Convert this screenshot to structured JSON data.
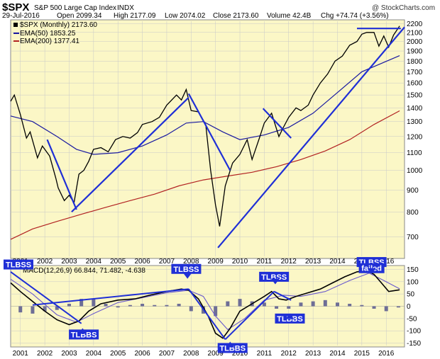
{
  "header": {
    "symbol": "$SPX",
    "name": "S&P 500 Large Cap Index",
    "exchange": "INDX",
    "watermark": "@ StockCharts.com",
    "date": "29-Jul-2016",
    "open": "Open 2099.34",
    "high": "High 2177.09",
    "low": "Low 2074.02",
    "close": "Close 2173.60",
    "volume": "Volume 42.4B",
    "chg": "Chg +74.74 (+3.56%)"
  },
  "legend": {
    "price": "$SPX (Monthly) 2173.60",
    "ema50": "EMA(50) 1853.25",
    "ema200": "EMA(200) 1377.41",
    "macd": "MACD(12,26,9) 66.844, 71.482, -4.638"
  },
  "colors": {
    "background": "#fbf7c6",
    "price": "#000000",
    "ema50": "#1a1aa0",
    "ema200": "#b22222",
    "trendline": "#1f2fd6",
    "histogram": "#6e6e96",
    "annotation_box": "#1f2fd6",
    "grid": "#c8c8c8"
  },
  "chart_data": [
    {
      "type": "line",
      "title": "$SPX S&P 500 Large Cap Index INDX (Monthly)",
      "y_scale": "log",
      "ylim": [
        630,
        2230
      ],
      "xlim": [
        2000.6,
        2016.75
      ],
      "x_ticks": [
        "2001",
        "2002",
        "2003",
        "2004",
        "2005",
        "2006",
        "2007",
        "2008",
        "2009",
        "2010",
        "2011",
        "2012",
        "2013",
        "2014",
        "2015",
        "2016"
      ],
      "y_ticks": [
        700,
        800,
        900,
        1000,
        1100,
        1200,
        1300,
        1400,
        1500,
        1600,
        1700,
        1800,
        1900,
        2000,
        2100,
        2200
      ],
      "series": [
        {
          "name": "$SPX (Monthly) 2173.60",
          "x": [
            2000.6,
            2000.75,
            2001.0,
            2001.25,
            2001.4,
            2001.7,
            2001.9,
            2002.2,
            2002.45,
            2002.55,
            2002.8,
            2003.0,
            2003.2,
            2003.4,
            2003.6,
            2003.8,
            2004.0,
            2004.3,
            2004.6,
            2004.9,
            2005.2,
            2005.5,
            2005.8,
            2006.0,
            2006.4,
            2006.7,
            2007.0,
            2007.4,
            2007.6,
            2007.8,
            2008.0,
            2008.3,
            2008.6,
            2008.8,
            2009.0,
            2009.17,
            2009.4,
            2009.7,
            2010.0,
            2010.3,
            2010.5,
            2010.8,
            2011.0,
            2011.3,
            2011.6,
            2011.75,
            2012.0,
            2012.3,
            2012.5,
            2012.8,
            2013.0,
            2013.3,
            2013.6,
            2013.9,
            2014.2,
            2014.5,
            2014.8,
            2015.0,
            2015.2,
            2015.5,
            2015.7,
            2015.9,
            2016.1,
            2016.3,
            2016.55
          ],
          "y": [
            1450,
            1500,
            1350,
            1190,
            1230,
            1070,
            1140,
            1080,
            960,
            910,
            850,
            875,
            840,
            980,
            1000,
            1050,
            1120,
            1130,
            1105,
            1180,
            1200,
            1190,
            1225,
            1280,
            1300,
            1330,
            1420,
            1500,
            1460,
            1545,
            1380,
            1370,
            1280,
            1000,
            830,
            740,
            920,
            1040,
            1090,
            1180,
            1060,
            1190,
            1290,
            1360,
            1200,
            1250,
            1330,
            1400,
            1380,
            1420,
            1500,
            1600,
            1680,
            1800,
            1850,
            1960,
            2000,
            2080,
            2100,
            2100,
            1950,
            2060,
            1940,
            2070,
            2173.6
          ]
        },
        {
          "name": "EMA(50) 1853.25",
          "x": [
            2000.6,
            2001.5,
            2002.5,
            2003.3,
            2004.0,
            2005.0,
            2006.0,
            2007.0,
            2007.8,
            2008.5,
            2009.3,
            2010.0,
            2011.0,
            2012.0,
            2013.0,
            2014.0,
            2015.0,
            2016.55
          ],
          "y": [
            1340,
            1300,
            1200,
            1120,
            1090,
            1100,
            1140,
            1210,
            1290,
            1300,
            1230,
            1180,
            1210,
            1260,
            1360,
            1520,
            1700,
            1853.25
          ]
        },
        {
          "name": "EMA(200) 1377.41",
          "x": [
            2000.6,
            2001.5,
            2002.5,
            2003.5,
            2004.5,
            2005.5,
            2006.5,
            2007.5,
            2008.5,
            2009.5,
            2010.5,
            2011.5,
            2012.5,
            2013.5,
            2014.5,
            2015.5,
            2016.55
          ],
          "y": [
            690,
            730,
            760,
            790,
            820,
            850,
            880,
            920,
            950,
            970,
            990,
            1020,
            1060,
            1110,
            1180,
            1280,
            1377.41
          ]
        }
      ],
      "trendlines": [
        {
          "x": [
            2002.1,
            2003.3
          ],
          "y": [
            1180,
            810
          ]
        },
        {
          "x": [
            2003.1,
            2007.9
          ],
          "y": [
            800,
            1480
          ]
        },
        {
          "x": [
            2007.9,
            2009.6
          ],
          "y": [
            1510,
            1000
          ]
        },
        {
          "x": [
            2009.1,
            2016.75
          ],
          "y": [
            660,
            2160
          ]
        },
        {
          "x": [
            2010.95,
            2012.1
          ],
          "y": [
            1395,
            1190
          ]
        },
        {
          "x": [
            2014.8,
            2016.6
          ],
          "y": [
            2145,
            2145
          ]
        }
      ]
    },
    {
      "type": "line",
      "title": "MACD(12,26,9) 66.844, 71.482, -4.638",
      "ylim": [
        -160,
        160
      ],
      "xlim": [
        2000.6,
        2016.75
      ],
      "y_ticks": [
        150,
        100,
        50,
        0,
        -50,
        -100,
        -150
      ],
      "series": [
        {
          "name": "MACD",
          "x": [
            2000.6,
            2001.0,
            2001.5,
            2002.0,
            2002.5,
            2003.0,
            2003.4,
            2003.8,
            2004.3,
            2005.0,
            2005.7,
            2006.3,
            2007.0,
            2007.6,
            2007.9,
            2008.3,
            2008.7,
            2009.0,
            2009.3,
            2009.6,
            2010.0,
            2010.5,
            2011.0,
            2011.3,
            2011.6,
            2011.9,
            2012.3,
            2012.8,
            2013.3,
            2013.8,
            2014.3,
            2014.8,
            2015.2,
            2015.5,
            2015.8,
            2016.1,
            2016.55
          ],
          "y": [
            95,
            60,
            20,
            -20,
            -55,
            -75,
            -60,
            -20,
            10,
            25,
            30,
            45,
            60,
            70,
            65,
            30,
            -40,
            -110,
            -130,
            -90,
            -20,
            10,
            40,
            60,
            30,
            25,
            40,
            55,
            70,
            95,
            120,
            140,
            145,
            130,
            95,
            60,
            67
          ]
        },
        {
          "name": "Signal",
          "x": [
            2000.6,
            2001.5,
            2002.5,
            2003.3,
            2004.0,
            2005.0,
            2006.0,
            2007.0,
            2007.9,
            2008.5,
            2009.0,
            2009.5,
            2010.2,
            2011.0,
            2011.8,
            2012.5,
            2013.5,
            2014.5,
            2015.3,
            2015.9,
            2016.55
          ],
          "y": [
            110,
            50,
            -35,
            -65,
            -30,
            15,
            35,
            55,
            65,
            40,
            -40,
            -95,
            -50,
            25,
            45,
            40,
            60,
            105,
            135,
            105,
            71
          ]
        }
      ],
      "histogram": {
        "x": [
          2001.0,
          2001.5,
          2002.0,
          2002.5,
          2003.0,
          2003.5,
          2004.0,
          2004.5,
          2005.0,
          2005.5,
          2006.0,
          2006.5,
          2007.0,
          2007.5,
          2008.0,
          2008.5,
          2009.0,
          2009.5,
          2010.0,
          2010.5,
          2011.0,
          2011.5,
          2012.0,
          2012.5,
          2013.0,
          2013.5,
          2014.0,
          2014.5,
          2015.0,
          2015.5,
          2016.0,
          2016.5
        ],
        "y": [
          -25,
          -30,
          -20,
          -15,
          10,
          30,
          30,
          10,
          -5,
          5,
          10,
          5,
          5,
          10,
          -20,
          -30,
          -40,
          20,
          30,
          20,
          15,
          -10,
          -10,
          15,
          20,
          25,
          15,
          10,
          5,
          -10,
          -20,
          -5
        ]
      },
      "trendlines": [
        {
          "x": [
            2000.6,
            2003.5
          ],
          "y": [
            140,
            -70
          ]
        },
        {
          "x": [
            2001.5,
            2007.9
          ],
          "y": [
            5,
            70
          ]
        },
        {
          "x": [
            2007.9,
            2009.4
          ],
          "y": [
            70,
            -135
          ]
        },
        {
          "x": [
            2009.4,
            2011.4
          ],
          "y": [
            -135,
            60
          ]
        },
        {
          "x": [
            2011.4,
            2012.1
          ],
          "y": [
            60,
            25
          ]
        }
      ]
    }
  ],
  "annotations": [
    {
      "label": "TLBSS",
      "x": 2000.65,
      "y": 170
    },
    {
      "label": "TLBBS",
      "x": 2003.6,
      "y": -115
    },
    {
      "label": "TLBSS",
      "x": 2007.8,
      "y": 152
    },
    {
      "label": "TLBBS",
      "x": 2009.7,
      "y": -170
    },
    {
      "label": "TLBSS",
      "x": 2011.4,
      "y": 120
    },
    {
      "label": "TLBBS",
      "x": 2012.05,
      "y": -50
    },
    {
      "label": "TLBSS",
      "x": 2015.4,
      "y": 180
    },
    {
      "label": "failed",
      "x": 2015.4,
      "y": 155
    }
  ]
}
